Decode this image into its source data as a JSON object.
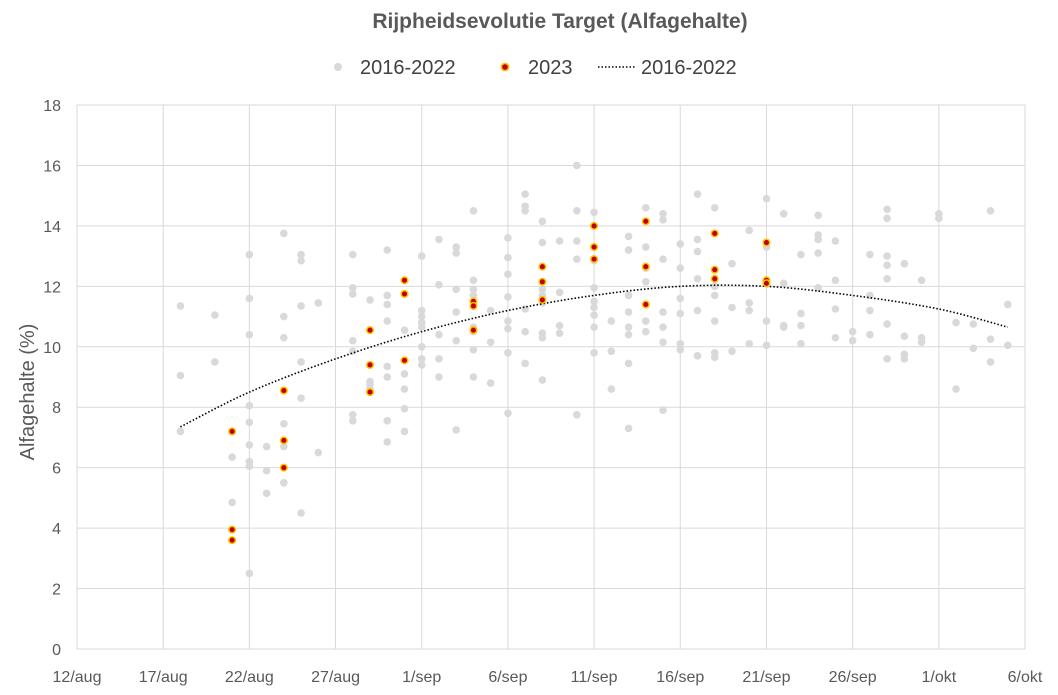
{
  "chart_data": {
    "type": "scatter",
    "title": "Rijpheidsevolutie Target (Alfagehalte)",
    "xlabel": "",
    "ylabel": "Alfagehalte (%)",
    "x_tick_labels": [
      "12/aug",
      "17/aug",
      "22/aug",
      "27/aug",
      "1/sep",
      "6/sep",
      "11/sep",
      "16/sep",
      "21/sep",
      "26/sep",
      "1/okt",
      "6/okt"
    ],
    "y_tick_labels": [
      "0",
      "2",
      "4",
      "6",
      "8",
      "10",
      "12",
      "14",
      "16",
      "18"
    ],
    "ylim": [
      0,
      18
    ],
    "xlim": [
      "12/aug",
      "6/okt"
    ],
    "grid": true,
    "legend_position": "top",
    "series": [
      {
        "name": "2016-2022",
        "kind": "scatter",
        "color": "#d9d9d9",
        "points": [
          [
            "18/aug",
            11.35
          ],
          [
            "18/aug",
            9.05
          ],
          [
            "18/aug",
            7.2
          ],
          [
            "20/aug",
            11.05
          ],
          [
            "20/aug",
            9.5
          ],
          [
            "21/aug",
            6.35
          ],
          [
            "21/aug",
            4.85
          ],
          [
            "22/aug",
            13.05
          ],
          [
            "22/aug",
            11.6
          ],
          [
            "22/aug",
            10.4
          ],
          [
            "22/aug",
            8.05
          ],
          [
            "22/aug",
            7.5
          ],
          [
            "22/aug",
            6.75
          ],
          [
            "22/aug",
            6.2
          ],
          [
            "22/aug",
            6.05
          ],
          [
            "22/aug",
            2.5
          ],
          [
            "23/aug",
            6.7
          ],
          [
            "23/aug",
            5.9
          ],
          [
            "23/aug",
            5.15
          ],
          [
            "24/aug",
            13.75
          ],
          [
            "24/aug",
            11.0
          ],
          [
            "24/aug",
            10.3
          ],
          [
            "24/aug",
            7.45
          ],
          [
            "24/aug",
            6.7
          ],
          [
            "24/aug",
            5.5
          ],
          [
            "25/aug",
            13.05
          ],
          [
            "25/aug",
            12.85
          ],
          [
            "25/aug",
            11.35
          ],
          [
            "25/aug",
            9.5
          ],
          [
            "25/aug",
            8.3
          ],
          [
            "25/aug",
            4.5
          ],
          [
            "26/aug",
            11.45
          ],
          [
            "26/aug",
            6.5
          ],
          [
            "28/aug",
            13.05
          ],
          [
            "28/aug",
            11.95
          ],
          [
            "28/aug",
            11.75
          ],
          [
            "28/aug",
            10.2
          ],
          [
            "28/aug",
            9.85
          ],
          [
            "28/aug",
            7.75
          ],
          [
            "28/aug",
            7.55
          ],
          [
            "29/aug",
            11.55
          ],
          [
            "29/aug",
            8.85
          ],
          [
            "29/aug",
            8.75
          ],
          [
            "29/aug",
            8.6
          ],
          [
            "30/aug",
            13.2
          ],
          [
            "30/aug",
            11.7
          ],
          [
            "30/aug",
            11.4
          ],
          [
            "30/aug",
            10.85
          ],
          [
            "30/aug",
            9.35
          ],
          [
            "30/aug",
            9.0
          ],
          [
            "30/aug",
            7.55
          ],
          [
            "30/aug",
            6.85
          ],
          [
            "31/aug",
            10.55
          ],
          [
            "31/aug",
            9.1
          ],
          [
            "31/aug",
            8.6
          ],
          [
            "31/aug",
            7.95
          ],
          [
            "31/aug",
            7.2
          ],
          [
            "1/sep",
            13.0
          ],
          [
            "1/sep",
            11.2
          ],
          [
            "1/sep",
            11.0
          ],
          [
            "1/sep",
            10.8
          ],
          [
            "1/sep",
            10.65
          ],
          [
            "1/sep",
            10.0
          ],
          [
            "1/sep",
            9.6
          ],
          [
            "1/sep",
            9.4
          ],
          [
            "2/sep",
            13.55
          ],
          [
            "2/sep",
            12.05
          ],
          [
            "2/sep",
            10.4
          ],
          [
            "2/sep",
            9.6
          ],
          [
            "2/sep",
            9.0
          ],
          [
            "3/sep",
            13.3
          ],
          [
            "3/sep",
            13.1
          ],
          [
            "3/sep",
            11.9
          ],
          [
            "3/sep",
            11.15
          ],
          [
            "3/sep",
            10.2
          ],
          [
            "3/sep",
            7.25
          ],
          [
            "4/sep",
            14.5
          ],
          [
            "4/sep",
            12.2
          ],
          [
            "4/sep",
            11.9
          ],
          [
            "4/sep",
            11.7
          ],
          [
            "4/sep",
            10.65
          ],
          [
            "4/sep",
            10.5
          ],
          [
            "4/sep",
            9.9
          ],
          [
            "4/sep",
            9.0
          ],
          [
            "5/sep",
            11.2
          ],
          [
            "5/sep",
            10.15
          ],
          [
            "5/sep",
            8.8
          ],
          [
            "6/sep",
            13.6
          ],
          [
            "6/sep",
            12.95
          ],
          [
            "6/sep",
            12.4
          ],
          [
            "6/sep",
            11.65
          ],
          [
            "6/sep",
            10.85
          ],
          [
            "6/sep",
            10.6
          ],
          [
            "6/sep",
            9.8
          ],
          [
            "6/sep",
            7.8
          ],
          [
            "7/sep",
            15.05
          ],
          [
            "7/sep",
            14.65
          ],
          [
            "7/sep",
            14.5
          ],
          [
            "7/sep",
            11.25
          ],
          [
            "7/sep",
            10.5
          ],
          [
            "7/sep",
            9.45
          ],
          [
            "8/sep",
            14.15
          ],
          [
            "8/sep",
            13.45
          ],
          [
            "8/sep",
            11.9
          ],
          [
            "8/sep",
            11.7
          ],
          [
            "8/sep",
            11.45
          ],
          [
            "8/sep",
            10.45
          ],
          [
            "8/sep",
            10.3
          ],
          [
            "8/sep",
            8.9
          ],
          [
            "9/sep",
            13.5
          ],
          [
            "9/sep",
            11.8
          ],
          [
            "9/sep",
            10.7
          ],
          [
            "9/sep",
            10.45
          ],
          [
            "10/sep",
            16.0
          ],
          [
            "10/sep",
            14.5
          ],
          [
            "10/sep",
            13.5
          ],
          [
            "10/sep",
            12.9
          ],
          [
            "10/sep",
            7.75
          ],
          [
            "11/sep",
            14.45
          ],
          [
            "11/sep",
            12.85
          ],
          [
            "11/sep",
            11.95
          ],
          [
            "11/sep",
            11.5
          ],
          [
            "11/sep",
            11.3
          ],
          [
            "11/sep",
            11.05
          ],
          [
            "11/sep",
            10.65
          ],
          [
            "11/sep",
            9.8
          ],
          [
            "12/sep",
            10.85
          ],
          [
            "12/sep",
            9.85
          ],
          [
            "12/sep",
            8.6
          ],
          [
            "13/sep",
            13.65
          ],
          [
            "13/sep",
            13.2
          ],
          [
            "13/sep",
            11.7
          ],
          [
            "13/sep",
            11.15
          ],
          [
            "13/sep",
            10.65
          ],
          [
            "13/sep",
            10.4
          ],
          [
            "13/sep",
            9.45
          ],
          [
            "13/sep",
            7.3
          ],
          [
            "14/sep",
            14.6
          ],
          [
            "14/sep",
            13.3
          ],
          [
            "14/sep",
            12.6
          ],
          [
            "14/sep",
            12.15
          ],
          [
            "14/sep",
            10.85
          ],
          [
            "14/sep",
            10.5
          ],
          [
            "15/sep",
            14.4
          ],
          [
            "15/sep",
            14.2
          ],
          [
            "15/sep",
            12.9
          ],
          [
            "15/sep",
            11.15
          ],
          [
            "15/sep",
            10.65
          ],
          [
            "15/sep",
            10.15
          ],
          [
            "15/sep",
            7.9
          ],
          [
            "16/sep",
            13.4
          ],
          [
            "16/sep",
            12.6
          ],
          [
            "16/sep",
            11.6
          ],
          [
            "16/sep",
            11.1
          ],
          [
            "16/sep",
            10.1
          ],
          [
            "16/sep",
            9.9
          ],
          [
            "17/sep",
            15.05
          ],
          [
            "17/sep",
            13.55
          ],
          [
            "17/sep",
            13.15
          ],
          [
            "17/sep",
            12.25
          ],
          [
            "17/sep",
            11.2
          ],
          [
            "17/sep",
            9.7
          ],
          [
            "18/sep",
            14.6
          ],
          [
            "18/sep",
            12.0
          ],
          [
            "18/sep",
            11.7
          ],
          [
            "18/sep",
            10.85
          ],
          [
            "18/sep",
            9.8
          ],
          [
            "18/sep",
            9.65
          ],
          [
            "19/sep",
            12.75
          ],
          [
            "19/sep",
            11.3
          ],
          [
            "19/sep",
            9.85
          ],
          [
            "20/sep",
            13.85
          ],
          [
            "20/sep",
            11.45
          ],
          [
            "20/sep",
            11.2
          ],
          [
            "20/sep",
            10.1
          ],
          [
            "21/sep",
            14.9
          ],
          [
            "21/sep",
            13.3
          ],
          [
            "21/sep",
            10.85
          ],
          [
            "21/sep",
            10.05
          ],
          [
            "22/sep",
            14.4
          ],
          [
            "22/sep",
            12.1
          ],
          [
            "22/sep",
            10.7
          ],
          [
            "22/sep",
            10.65
          ],
          [
            "23/sep",
            13.05
          ],
          [
            "23/sep",
            11.1
          ],
          [
            "23/sep",
            10.7
          ],
          [
            "23/sep",
            10.1
          ],
          [
            "24/sep",
            14.35
          ],
          [
            "24/sep",
            13.7
          ],
          [
            "24/sep",
            13.55
          ],
          [
            "24/sep",
            13.1
          ],
          [
            "24/sep",
            11.95
          ],
          [
            "25/sep",
            13.5
          ],
          [
            "25/sep",
            12.2
          ],
          [
            "25/sep",
            11.25
          ],
          [
            "25/sep",
            10.3
          ],
          [
            "26/sep",
            10.5
          ],
          [
            "26/sep",
            10.2
          ],
          [
            "27/sep",
            13.05
          ],
          [
            "27/sep",
            11.7
          ],
          [
            "27/sep",
            11.2
          ],
          [
            "27/sep",
            10.4
          ],
          [
            "28/sep",
            14.55
          ],
          [
            "28/sep",
            14.25
          ],
          [
            "28/sep",
            13.0
          ],
          [
            "28/sep",
            12.7
          ],
          [
            "28/sep",
            12.25
          ],
          [
            "28/sep",
            10.75
          ],
          [
            "28/sep",
            9.6
          ],
          [
            "29/sep",
            12.75
          ],
          [
            "29/sep",
            10.35
          ],
          [
            "29/sep",
            9.75
          ],
          [
            "29/sep",
            9.6
          ],
          [
            "30/sep",
            12.2
          ],
          [
            "30/sep",
            10.3
          ],
          [
            "30/sep",
            10.15
          ],
          [
            "1/okt",
            14.4
          ],
          [
            "1/okt",
            14.25
          ],
          [
            "2/okt",
            10.8
          ],
          [
            "2/okt",
            8.6
          ],
          [
            "3/okt",
            10.75
          ],
          [
            "3/okt",
            9.95
          ],
          [
            "4/okt",
            14.5
          ],
          [
            "4/okt",
            10.25
          ],
          [
            "4/okt",
            9.5
          ],
          [
            "5/okt",
            11.4
          ],
          [
            "5/okt",
            10.05
          ]
        ]
      },
      {
        "name": "2023",
        "kind": "scatter",
        "color": "#c00000",
        "edge_color": "#ffc000",
        "points": [
          [
            "21/aug",
            7.2
          ],
          [
            "21/aug",
            3.95
          ],
          [
            "21/aug",
            3.6
          ],
          [
            "24/aug",
            8.55
          ],
          [
            "24/aug",
            6.9
          ],
          [
            "24/aug",
            6.0
          ],
          [
            "29/aug",
            10.55
          ],
          [
            "29/aug",
            9.4
          ],
          [
            "29/aug",
            8.5
          ],
          [
            "31/aug",
            12.2
          ],
          [
            "31/aug",
            11.75
          ],
          [
            "31/aug",
            9.55
          ],
          [
            "4/sep",
            11.5
          ],
          [
            "4/sep",
            11.35
          ],
          [
            "4/sep",
            10.55
          ],
          [
            "8/sep",
            12.65
          ],
          [
            "8/sep",
            12.15
          ],
          [
            "8/sep",
            11.55
          ],
          [
            "11/sep",
            14.0
          ],
          [
            "11/sep",
            13.3
          ],
          [
            "11/sep",
            12.9
          ],
          [
            "14/sep",
            14.15
          ],
          [
            "14/sep",
            12.65
          ],
          [
            "14/sep",
            11.4
          ],
          [
            "18/sep",
            13.75
          ],
          [
            "18/sep",
            12.55
          ],
          [
            "18/sep",
            12.25
          ],
          [
            "21/sep",
            13.45
          ],
          [
            "21/sep",
            12.2
          ],
          [
            "21/sep",
            12.1
          ]
        ]
      },
      {
        "name": "2016-2022",
        "kind": "trendline",
        "style": "dotted",
        "color": "#000000",
        "points": [
          [
            "18/aug",
            7.35
          ],
          [
            "22/aug",
            8.5
          ],
          [
            "27/aug",
            9.6
          ],
          [
            "1/sep",
            10.5
          ],
          [
            "6/sep",
            11.2
          ],
          [
            "11/sep",
            11.7
          ],
          [
            "16/sep",
            12.0
          ],
          [
            "21/sep",
            12.0
          ],
          [
            "26/sep",
            11.7
          ],
          [
            "1/okt",
            11.25
          ],
          [
            "5/okt",
            10.65
          ]
        ]
      }
    ]
  }
}
